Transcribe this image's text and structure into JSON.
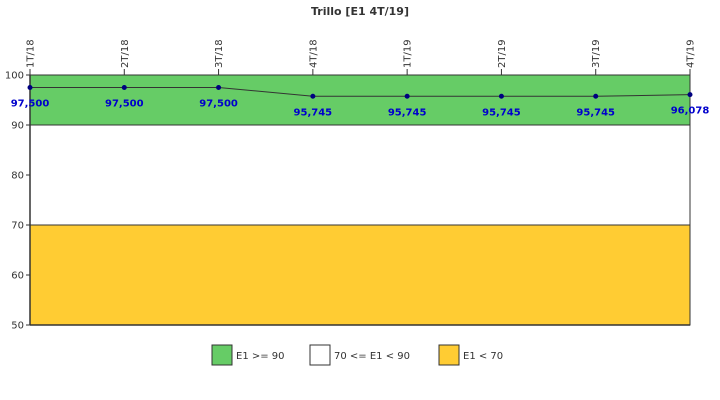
{
  "chart_data": {
    "type": "line",
    "title": "Trillo [E1 4T/19]",
    "xlabel": "",
    "ylabel": "",
    "categories": [
      "1T/18",
      "2T/18",
      "3T/18",
      "4T/18",
      "1T/19",
      "2T/19",
      "3T/19",
      "4T/19"
    ],
    "series": [
      {
        "values": [
          97.5,
          97.5,
          97.5,
          95.745,
          95.745,
          95.745,
          95.745,
          96.078
        ],
        "labels": [
          "97,500",
          "97,500",
          "97,500",
          "95,745",
          "95,745",
          "95,745",
          "95,745",
          "96,078"
        ],
        "color": "#000080"
      }
    ],
    "ylim": [
      50,
      100
    ],
    "yticks": [
      50,
      60,
      70,
      80,
      90,
      100
    ],
    "grid": false,
    "bands": [
      {
        "from": 90,
        "to": 100,
        "color": "#66cc66",
        "label": "E1 >= 90"
      },
      {
        "from": 70,
        "to": 90,
        "color": "#ffffff",
        "label": "70 <= E1 < 90"
      },
      {
        "from": 50,
        "to": 70,
        "color": "#ffcc33",
        "label": "E1 < 70"
      }
    ],
    "legend_position": "bottom"
  }
}
